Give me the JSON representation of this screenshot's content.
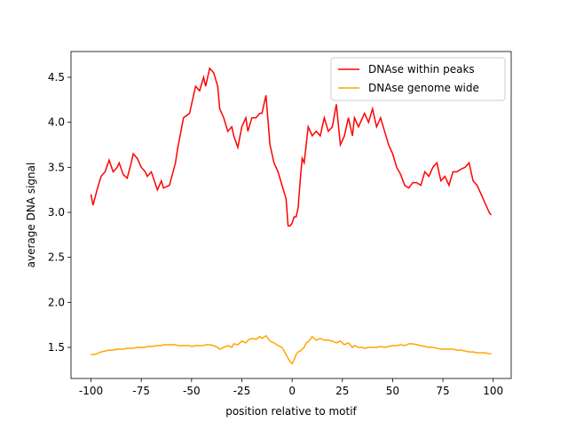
{
  "chart_data": {
    "type": "line",
    "xlabel": "position relative to motif",
    "ylabel": "average DNA signal",
    "x": [
      -100,
      -99,
      -97,
      -95,
      -93,
      -91,
      -89,
      -87,
      -86,
      -84,
      -82,
      -80,
      -79,
      -77,
      -75,
      -73,
      -72,
      -70,
      -67,
      -65,
      -64,
      -61,
      -58,
      -57,
      -54,
      -51,
      -50,
      -48,
      -46,
      -44,
      -43,
      -41,
      -39,
      -37,
      -36,
      -34,
      -32,
      -30,
      -29,
      -27,
      -25,
      -23,
      -22,
      -20,
      -18,
      -16,
      -15,
      -13,
      -11,
      -9,
      -7,
      -5,
      -3,
      -2,
      -1,
      0,
      1,
      2,
      3,
      4,
      5,
      6,
      7,
      8,
      10,
      12,
      14,
      16,
      18,
      20,
      22,
      24,
      26,
      28,
      30,
      31,
      33,
      35,
      36,
      38,
      40,
      42,
      44,
      46,
      48,
      50,
      52,
      54,
      56,
      58,
      60,
      62,
      64,
      66,
      68,
      70,
      72,
      74,
      76,
      78,
      80,
      82,
      84,
      86,
      88,
      90,
      92,
      94,
      96,
      98,
      99
    ],
    "series": [
      {
        "name": "DNAse within peaks",
        "color": "#ff0000",
        "values": [
          3.2,
          3.08,
          3.25,
          3.4,
          3.45,
          3.58,
          3.45,
          3.5,
          3.55,
          3.42,
          3.38,
          3.55,
          3.65,
          3.6,
          3.5,
          3.45,
          3.4,
          3.45,
          3.25,
          3.35,
          3.27,
          3.3,
          3.55,
          3.7,
          4.05,
          4.1,
          4.2,
          4.4,
          4.35,
          4.5,
          4.4,
          4.6,
          4.55,
          4.4,
          4.15,
          4.05,
          3.9,
          3.95,
          3.85,
          3.72,
          3.95,
          4.05,
          3.9,
          4.05,
          4.05,
          4.1,
          4.1,
          4.3,
          3.75,
          3.55,
          3.45,
          3.3,
          3.15,
          2.85,
          2.85,
          2.88,
          2.95,
          2.95,
          3.05,
          3.35,
          3.6,
          3.55,
          3.75,
          3.95,
          3.85,
          3.9,
          3.85,
          4.05,
          3.9,
          3.95,
          4.2,
          3.75,
          3.85,
          4.05,
          3.85,
          4.05,
          3.95,
          4.05,
          4.1,
          4.0,
          4.15,
          3.95,
          4.05,
          3.9,
          3.75,
          3.65,
          3.5,
          3.42,
          3.3,
          3.27,
          3.33,
          3.33,
          3.3,
          3.45,
          3.4,
          3.5,
          3.55,
          3.35,
          3.4,
          3.3,
          3.45,
          3.45,
          3.48,
          3.5,
          3.55,
          3.35,
          3.3,
          3.2,
          3.1,
          3.0,
          2.97
        ]
      },
      {
        "name": "DNAse genome wide",
        "color": "#ffa500",
        "values": [
          1.42,
          1.42,
          1.43,
          1.45,
          1.46,
          1.47,
          1.47,
          1.48,
          1.48,
          1.48,
          1.49,
          1.49,
          1.49,
          1.5,
          1.5,
          1.5,
          1.51,
          1.51,
          1.52,
          1.52,
          1.53,
          1.53,
          1.53,
          1.52,
          1.52,
          1.52,
          1.51,
          1.52,
          1.52,
          1.52,
          1.53,
          1.53,
          1.52,
          1.5,
          1.48,
          1.5,
          1.52,
          1.5,
          1.54,
          1.53,
          1.57,
          1.55,
          1.58,
          1.6,
          1.59,
          1.62,
          1.6,
          1.63,
          1.57,
          1.55,
          1.52,
          1.5,
          1.42,
          1.38,
          1.34,
          1.32,
          1.36,
          1.42,
          1.45,
          1.46,
          1.48,
          1.5,
          1.55,
          1.56,
          1.62,
          1.58,
          1.6,
          1.58,
          1.58,
          1.57,
          1.55,
          1.57,
          1.53,
          1.55,
          1.5,
          1.52,
          1.5,
          1.5,
          1.49,
          1.5,
          1.5,
          1.5,
          1.51,
          1.5,
          1.51,
          1.52,
          1.52,
          1.53,
          1.52,
          1.54,
          1.54,
          1.53,
          1.52,
          1.51,
          1.5,
          1.5,
          1.49,
          1.48,
          1.48,
          1.48,
          1.48,
          1.47,
          1.47,
          1.46,
          1.45,
          1.45,
          1.44,
          1.44,
          1.44,
          1.43,
          1.43
        ]
      }
    ],
    "xlim": [
      -109.95,
      108.95
    ],
    "xticks": [
      -100,
      -75,
      -50,
      -25,
      0,
      25,
      50,
      75,
      100
    ],
    "ylim": [
      1.155,
      4.786
    ],
    "yticks": [
      1.5,
      {
        "value": 2,
        "label": "2.0"
      },
      2.5,
      {
        "value": 3,
        "label": "3.0"
      },
      3.5,
      {
        "value": 4,
        "label": "4.0"
      },
      4.5
    ],
    "legend": "upper right"
  }
}
